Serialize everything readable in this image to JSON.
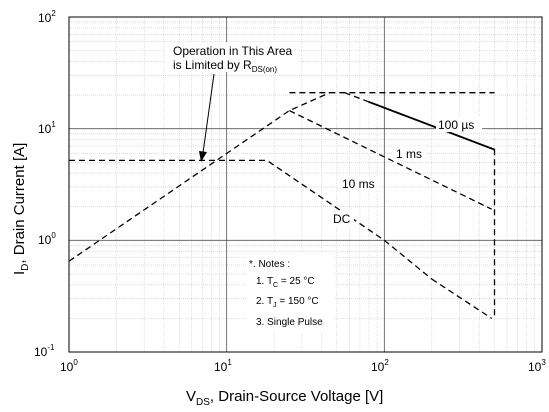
{
  "chart_data": {
    "type": "line",
    "x_scale": "log",
    "y_scale": "log",
    "xlim": [
      1,
      1000
    ],
    "ylim": [
      0.1,
      100
    ],
    "grid": true,
    "x_ticks": [
      {
        "value": 1,
        "base": "10",
        "exp": "0"
      },
      {
        "value": 10,
        "base": "10",
        "exp": "1"
      },
      {
        "value": 100,
        "base": "10",
        "exp": "2"
      },
      {
        "value": 1000,
        "base": "10",
        "exp": "3"
      }
    ],
    "y_ticks": [
      {
        "value": 0.1,
        "base": "10",
        "exp": "-1"
      },
      {
        "value": 1,
        "base": "10",
        "exp": "0"
      },
      {
        "value": 10,
        "base": "10",
        "exp": "1"
      },
      {
        "value": 100,
        "base": "10",
        "exp": "2"
      }
    ],
    "xlabel": {
      "main": "V",
      "sub": "DS",
      "rest": ", Drain-Source Voltage [V]"
    },
    "ylabel": {
      "main": "I",
      "sub": "D",
      "rest": ", Drain Current [A]"
    },
    "series": [
      {
        "name": "Operation in This Area is Limited by R DS(on)",
        "style": "dashed",
        "x": [
          1,
          25,
          45
        ],
        "y": [
          0.65,
          14.5,
          21
        ]
      },
      {
        "name": "",
        "style": "dashed",
        "x": [
          25,
          500
        ],
        "y": [
          21,
          21
        ]
      },
      {
        "name": "100 µs",
        "style": "dashed",
        "emphasis_until": 480,
        "x": [
          56,
          500,
          500
        ],
        "y": [
          21,
          6.5,
          0.2
        ]
      },
      {
        "name": "1 ms",
        "style": "dashed",
        "x": [
          25,
          480
        ],
        "y": [
          14.5,
          1.9
        ]
      },
      {
        "name": "10 ms",
        "style": "dashed",
        "x": [
          1,
          18,
          100,
          200
        ],
        "y": [
          5.2,
          5.2,
          1.0,
          0.45
        ]
      },
      {
        "name": "DC",
        "style": "dashed",
        "x": [
          200,
          480
        ],
        "y": [
          0.45,
          0.2
        ]
      }
    ],
    "annotations": {
      "rdson_line1": "Operation in This Area",
      "rdson_line2_main": "is Limited by R",
      "rdson_line2_sub": "DS(on)",
      "label_100us": "100 µs",
      "label_1ms": "1 ms",
      "label_10ms": "10 ms",
      "label_dc": "DC"
    },
    "notes": {
      "title": "*. Notes :",
      "note1_main": "1. T",
      "note1_sub": "C",
      "note1_rest": " = 25 °C",
      "note2_main": "2. T",
      "note2_sub": "J",
      "note2_rest": " = 150 °C",
      "note3": "3. Single Pulse"
    }
  }
}
